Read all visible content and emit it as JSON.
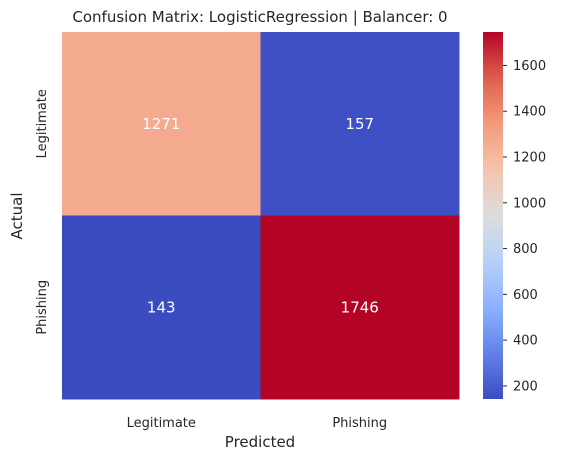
{
  "chart_data": {
    "type": "heatmap",
    "title": "Confusion Matrix: LogisticRegression | Balancer: 0",
    "xlabel": "Predicted",
    "ylabel": "Actual",
    "x_categories": [
      "Legitimate",
      "Phishing"
    ],
    "y_categories": [
      "Legitimate",
      "Phishing"
    ],
    "values": [
      [
        1271,
        157
      ],
      [
        143,
        1746
      ]
    ],
    "colormap": "coolwarm",
    "color_range": [
      143,
      1746
    ],
    "colorbar_ticks": [
      200,
      400,
      600,
      800,
      1000,
      1200,
      1400,
      1600
    ],
    "grid": false
  }
}
